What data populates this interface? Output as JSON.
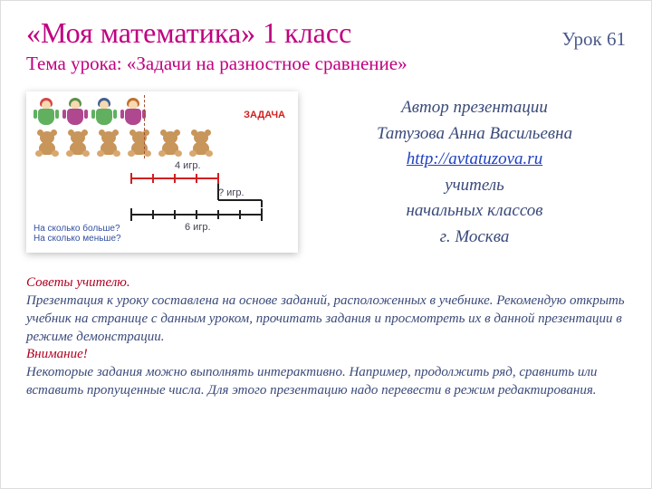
{
  "title": "«Моя математика» 1 класс",
  "subtitle": "Тема урока: «Задачи на разностное сравнение»",
  "lesson_label": "Урок 61",
  "thumb": {
    "zadacha": "ЗАДАЧА",
    "dolls": [
      {
        "hair": "#d04848",
        "body": "#60b060"
      },
      {
        "hair": "#589048",
        "body": "#b04890"
      },
      {
        "hair": "#406090",
        "body": "#60b060"
      },
      {
        "hair": "#c07030",
        "body": "#b04890"
      }
    ],
    "bears_count": 6,
    "q1": "На сколько больше?",
    "q2": "На сколько меньше?",
    "lbl_top": "4 игр.",
    "lbl_mid": "? игр.",
    "lbl_bot": "6 игр.",
    "red_ticks": 4,
    "bottom_ticks": 6
  },
  "author": {
    "l1": "Автор презентации",
    "l2": "Татузова Анна Васильевна",
    "link_text": "http://avtatuzova.ru",
    "l4": "учитель",
    "l5": "начальных классов",
    "l6": "г. Москва"
  },
  "advice": {
    "h1": "Советы учителю.",
    "p1": "Презентация к уроку составлена на основе заданий, расположенных в учебнике. Рекомендую открыть учебник на странице с данным уроком, прочитать задания и просмотреть их в данной презентации в режиме демонстрации.",
    "h2": "Внимание!",
    "p2": "Некоторые задания можно выполнять интерактивно. Например, продолжить ряд, сравнить или вставить пропущенные числа.  Для этого презентацию надо перевести в режим редактирования."
  }
}
